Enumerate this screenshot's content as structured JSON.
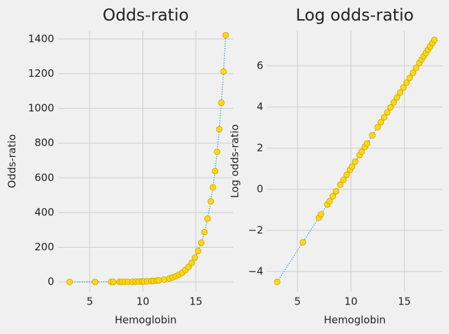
{
  "chart_data": [
    {
      "type": "scatter",
      "title": "Odds-ratio",
      "x_label": "Hemoglobin",
      "y_label": "Odds-ratio",
      "x": [
        3.1,
        5.5,
        7.0,
        7.2,
        7.8,
        8.0,
        8.3,
        8.6,
        9.0,
        9.3,
        9.6,
        9.9,
        10.1,
        10.4,
        10.8,
        11.0,
        11.3,
        11.5,
        12.0,
        12.5,
        12.8,
        13.1,
        13.4,
        13.7,
        14.0,
        14.3,
        14.6,
        14.9,
        15.2,
        15.5,
        15.8,
        16.1,
        16.4,
        16.6,
        16.8,
        17.0,
        17.2,
        17.4,
        17.6,
        17.8
      ],
      "values": [
        0.011,
        0.076,
        0.25,
        0.3,
        0.48,
        0.56,
        0.71,
        0.9,
        1.25,
        1.58,
        2.01,
        2.56,
        3.0,
        3.82,
        5.26,
        6.17,
        7.85,
        9.21,
        13.7,
        20.5,
        26.0,
        33.1,
        42.1,
        53.5,
        68.0,
        86.5,
        110,
        140,
        178,
        226,
        287,
        365,
        464,
        545,
        639,
        750,
        880,
        1033,
        1212,
        1422
      ],
      "xlim": [
        2.03,
        18.5
      ],
      "ylim": [
        -55,
        1447
      ],
      "xticks": [
        5,
        10,
        15
      ],
      "yticks": [
        0,
        200,
        400,
        600,
        800,
        1000,
        1200,
        1400
      ],
      "grid": true,
      "line_color": "#30a2da",
      "marker_color": "#ffd700",
      "marker_edge": "#d4aa00"
    },
    {
      "type": "scatter",
      "title": "Log odds-ratio",
      "x_label": "Hemoglobin",
      "y_label": "Log odds-ratio",
      "x": [
        3.1,
        5.5,
        7.0,
        7.2,
        7.8,
        8.0,
        8.3,
        8.6,
        9.0,
        9.3,
        9.6,
        9.9,
        10.1,
        10.4,
        10.8,
        11.0,
        11.3,
        11.5,
        12.0,
        12.5,
        12.8,
        13.1,
        13.4,
        13.7,
        14.0,
        14.3,
        14.6,
        14.9,
        15.2,
        15.5,
        15.8,
        16.1,
        16.4,
        16.6,
        16.8,
        17.0,
        17.2,
        17.4,
        17.6,
        17.8
      ],
      "values": [
        -4.5,
        -2.58,
        -1.38,
        -1.22,
        -0.74,
        -0.58,
        -0.34,
        -0.1,
        0.22,
        0.46,
        0.7,
        0.94,
        1.1,
        1.34,
        1.66,
        1.82,
        2.06,
        2.22,
        2.62,
        3.02,
        3.26,
        3.5,
        3.74,
        3.98,
        4.22,
        4.46,
        4.7,
        4.94,
        5.18,
        5.42,
        5.66,
        5.9,
        6.14,
        6.3,
        6.46,
        6.62,
        6.78,
        6.94,
        7.1,
        7.26
      ],
      "xlim": [
        2.18,
        18.53
      ],
      "ylim": [
        -4.97,
        7.7
      ],
      "xticks": [
        5,
        10,
        15
      ],
      "yticks": [
        {
          "value": -4,
          "label": "−4"
        },
        {
          "value": -2,
          "label": "−2"
        },
        0,
        2,
        4,
        6
      ],
      "grid": true,
      "line_color": "#30a2da",
      "marker_color": "#ffd700",
      "marker_edge": "#d4aa00"
    }
  ]
}
